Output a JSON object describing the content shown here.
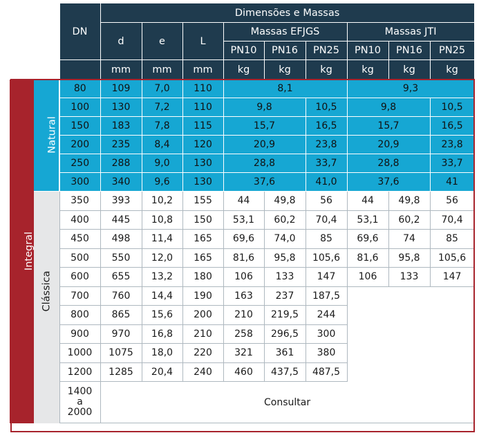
{
  "header": {
    "dimensions_title": "Dimensões e Massas",
    "dn": "DN",
    "d": "d",
    "e": "e",
    "L": "L",
    "massas_efjgs": "Massas EFJGS",
    "massas_jti": "Massas JTI",
    "pn10": "PN10",
    "pn16": "PN16",
    "pn25": "PN25",
    "unit_mm": "mm",
    "unit_kg": "kg"
  },
  "labels": {
    "integral": "Integral",
    "natural": "Natural",
    "classica": "Clássica"
  },
  "natural_rows": [
    {
      "dn": "80",
      "d": "109",
      "e": "7,0",
      "L": "110",
      "ef_merged": "8,1",
      "jti_merged": "9,3"
    },
    {
      "dn": "100",
      "d": "130",
      "e": "7,2",
      "L": "110",
      "ef_pn1016": "9,8",
      "ef_pn25": "10,5",
      "jti_pn1016": "9,8",
      "jti_pn25": "10,5"
    },
    {
      "dn": "150",
      "d": "183",
      "e": "7,8",
      "L": "115",
      "ef_pn1016": "15,7",
      "ef_pn25": "16,5",
      "jti_pn1016": "15,7",
      "jti_pn25": "16,5"
    },
    {
      "dn": "200",
      "d": "235",
      "e": "8,4",
      "L": "120",
      "ef_pn1016": "20,9",
      "ef_pn25": "23,8",
      "jti_pn1016": "20,9",
      "jti_pn25": "23,8"
    },
    {
      "dn": "250",
      "d": "288",
      "e": "9,0",
      "L": "130",
      "ef_pn1016": "28,8",
      "ef_pn25": "33,7",
      "jti_pn1016": "28,8",
      "jti_pn25": "33,7"
    },
    {
      "dn": "300",
      "d": "340",
      "e": "9,6",
      "L": "130",
      "ef_pn1016": "37,6",
      "ef_pn25": "41,0",
      "jti_pn1016": "37,6",
      "jti_pn25": "41"
    }
  ],
  "classic_rows": [
    {
      "dn": "350",
      "d": "393",
      "e": "10,2",
      "L": "155",
      "ef10": "44",
      "ef16": "49,8",
      "ef25": "56",
      "j10": "44",
      "j16": "49,8",
      "j25": "56"
    },
    {
      "dn": "400",
      "d": "445",
      "e": "10,8",
      "L": "150",
      "ef10": "53,1",
      "ef16": "60,2",
      "ef25": "70,4",
      "j10": "53,1",
      "j16": "60,2",
      "j25": "70,4"
    },
    {
      "dn": "450",
      "d": "498",
      "e": "11,4",
      "L": "165",
      "ef10": "69,6",
      "ef16": "74,0",
      "ef25": "85",
      "j10": "69,6",
      "j16": "74",
      "j25": "85"
    },
    {
      "dn": "500",
      "d": "550",
      "e": "12,0",
      "L": "165",
      "ef10": "81,6",
      "ef16": "95,8",
      "ef25": "105,6",
      "j10": "81,6",
      "j16": "95,8",
      "j25": "105,6"
    },
    {
      "dn": "600",
      "d": "655",
      "e": "13,2",
      "L": "180",
      "ef10": "106",
      "ef16": "133",
      "ef25": "147",
      "j10": "106",
      "j16": "133",
      "j25": "147"
    },
    {
      "dn": "700",
      "d": "760",
      "e": "14,4",
      "L": "190",
      "ef10": "163",
      "ef16": "237",
      "ef25": "187,5"
    },
    {
      "dn": "800",
      "d": "865",
      "e": "15,6",
      "L": "200",
      "ef10": "210",
      "ef16": "219,5",
      "ef25": "244"
    },
    {
      "dn": "900",
      "d": "970",
      "e": "16,8",
      "L": "210",
      "ef10": "258",
      "ef16": "296,5",
      "ef25": "300"
    },
    {
      "dn": "1000",
      "d": "1075",
      "e": "18,0",
      "L": "220",
      "ef10": "321",
      "ef16": "361",
      "ef25": "380"
    },
    {
      "dn": "1200",
      "d": "1285",
      "e": "20,4",
      "L": "240",
      "ef10": "460",
      "ef16": "437,5",
      "ef25": "487,5"
    }
  ],
  "last_row": {
    "dn_line1": "1400",
    "dn_line2": "a",
    "dn_line3": "2000",
    "note": "Consultar"
  }
}
